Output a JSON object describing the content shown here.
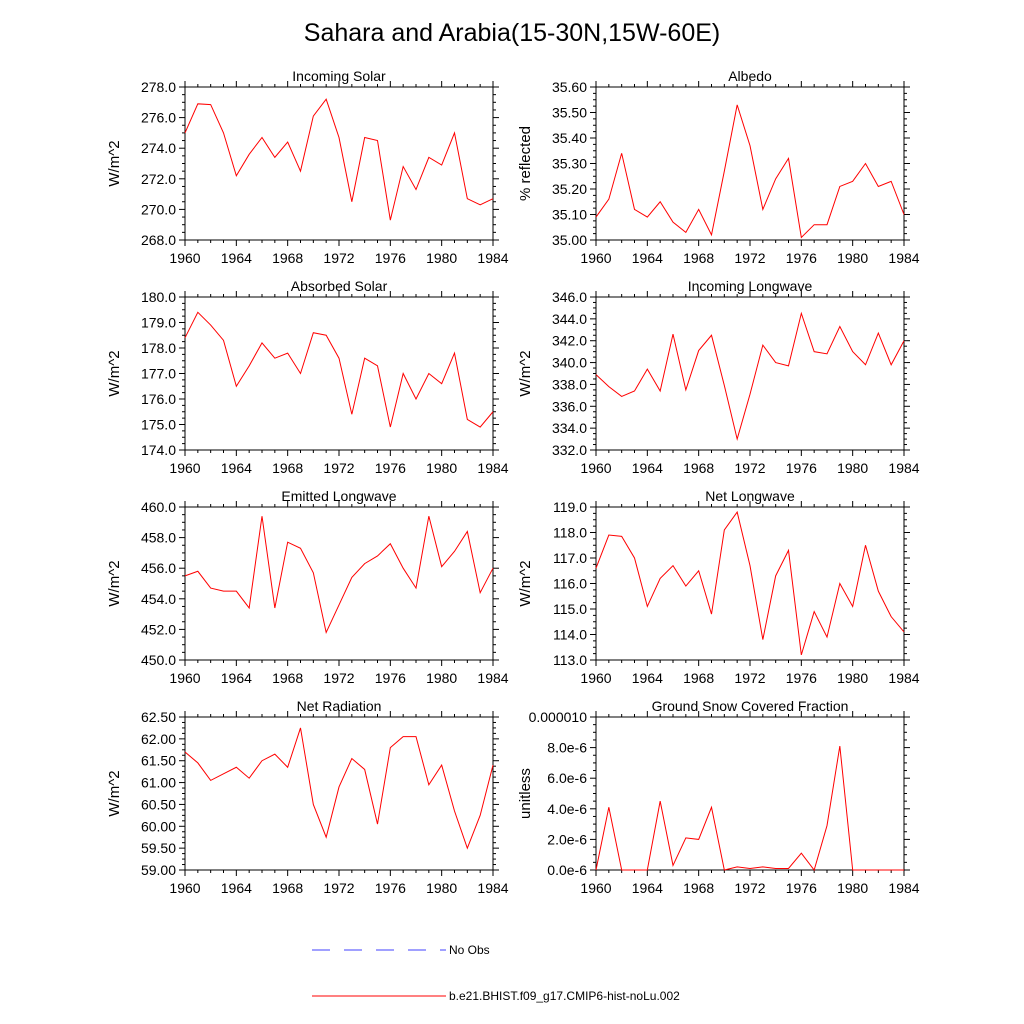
{
  "title": "Sahara and Arabia(15-30N,15W-60E)",
  "legend": [
    {
      "label": "No Obs",
      "color": "#4040ff",
      "dashed": true
    },
    {
      "label": "b.e21.BHIST.f09_g17.CMIP6-hist-noLu.002",
      "color": "#ff0000",
      "dashed": false
    }
  ],
  "chart_data": [
    {
      "type": "line",
      "title": "Incoming Solar",
      "ylabel": "W/m^2",
      "xlim": [
        1960,
        1984
      ],
      "ylim": [
        268,
        278
      ],
      "xticks": [
        1960,
        1964,
        1968,
        1972,
        1976,
        1980,
        1984
      ],
      "xtick_labels": [
        "1960",
        "1964",
        "1968",
        "1972",
        "1976",
        "1980",
        "1984"
      ],
      "yticks": [
        268,
        270,
        272,
        274,
        276,
        278
      ],
      "ytick_labels": [
        "268.0",
        "270.0",
        "272.0",
        "274.0",
        "276.0",
        "278.0"
      ],
      "series": [
        {
          "color": "#ff0000",
          "x": [
            1960,
            1961,
            1962,
            1963,
            1964,
            1965,
            1966,
            1967,
            1968,
            1969,
            1970,
            1971,
            1972,
            1973,
            1974,
            1975,
            1976,
            1977,
            1978,
            1979,
            1980,
            1981,
            1982,
            1983,
            1984
          ],
          "values": [
            275.0,
            276.9,
            276.85,
            275.0,
            272.2,
            273.6,
            274.7,
            273.4,
            274.4,
            272.5,
            276.1,
            277.2,
            274.7,
            270.5,
            274.7,
            274.5,
            269.3,
            272.8,
            271.3,
            273.4,
            272.9,
            275.0,
            270.7,
            270.3,
            270.7
          ]
        }
      ]
    },
    {
      "type": "line",
      "title": "Albedo",
      "ylabel": "% reflected",
      "xlim": [
        1960,
        1984
      ],
      "ylim": [
        35.0,
        35.6
      ],
      "xticks": [
        1960,
        1964,
        1968,
        1972,
        1976,
        1980,
        1984
      ],
      "xtick_labels": [
        "1960",
        "1964",
        "1968",
        "1972",
        "1976",
        "1980",
        "1984"
      ],
      "yticks": [
        35.0,
        35.1,
        35.2,
        35.3,
        35.4,
        35.5,
        35.6
      ],
      "ytick_labels": [
        "35.00",
        "35.10",
        "35.20",
        "35.30",
        "35.40",
        "35.50",
        "35.60"
      ],
      "series": [
        {
          "color": "#ff0000",
          "x": [
            1960,
            1961,
            1962,
            1963,
            1964,
            1965,
            1966,
            1967,
            1968,
            1969,
            1970,
            1971,
            1972,
            1973,
            1974,
            1975,
            1976,
            1977,
            1978,
            1979,
            1980,
            1981,
            1982,
            1983,
            1984
          ],
          "values": [
            35.09,
            35.16,
            35.34,
            35.12,
            35.09,
            35.15,
            35.07,
            35.03,
            35.12,
            35.02,
            35.27,
            35.53,
            35.37,
            35.12,
            35.24,
            35.32,
            35.01,
            35.06,
            35.06,
            35.21,
            35.23,
            35.3,
            35.21,
            35.23,
            35.1
          ]
        }
      ]
    },
    {
      "type": "line",
      "title": "Absorbed Solar",
      "ylabel": "W/m^2",
      "xlim": [
        1960,
        1984
      ],
      "ylim": [
        174,
        180
      ],
      "xticks": [
        1960,
        1964,
        1968,
        1972,
        1976,
        1980,
        1984
      ],
      "xtick_labels": [
        "1960",
        "1964",
        "1968",
        "1972",
        "1976",
        "1980",
        "1984"
      ],
      "yticks": [
        174,
        175,
        176,
        177,
        178,
        179,
        180
      ],
      "ytick_labels": [
        "174.0",
        "175.0",
        "176.0",
        "177.0",
        "178.0",
        "179.0",
        "180.0"
      ],
      "series": [
        {
          "color": "#ff0000",
          "x": [
            1960,
            1961,
            1962,
            1963,
            1964,
            1965,
            1966,
            1967,
            1968,
            1969,
            1970,
            1971,
            1972,
            1973,
            1974,
            1975,
            1976,
            1977,
            1978,
            1979,
            1980,
            1981,
            1982,
            1983,
            1984
          ],
          "values": [
            178.4,
            179.4,
            178.9,
            178.3,
            176.5,
            177.3,
            178.2,
            177.6,
            177.8,
            177.0,
            178.6,
            178.5,
            177.6,
            175.4,
            177.6,
            177.3,
            174.9,
            177.0,
            176.0,
            177.0,
            176.6,
            177.8,
            175.2,
            174.9,
            175.5
          ]
        }
      ]
    },
    {
      "type": "line",
      "title": "Incoming Longwave",
      "ylabel": "W/m^2",
      "xlim": [
        1960,
        1984
      ],
      "ylim": [
        332,
        346
      ],
      "xticks": [
        1960,
        1964,
        1968,
        1972,
        1976,
        1980,
        1984
      ],
      "xtick_labels": [
        "1960",
        "1964",
        "1968",
        "1972",
        "1976",
        "1980",
        "1984"
      ],
      "yticks": [
        332,
        334,
        336,
        338,
        340,
        342,
        344,
        346
      ],
      "ytick_labels": [
        "332.0",
        "334.0",
        "336.0",
        "338.0",
        "340.0",
        "342.0",
        "344.0",
        "346.0"
      ],
      "series": [
        {
          "color": "#ff0000",
          "x": [
            1960,
            1961,
            1962,
            1963,
            1964,
            1965,
            1966,
            1967,
            1968,
            1969,
            1970,
            1971,
            1972,
            1973,
            1974,
            1975,
            1976,
            1977,
            1978,
            1979,
            1980,
            1981,
            1982,
            1983,
            1984
          ],
          "values": [
            338.9,
            337.8,
            336.9,
            337.4,
            339.4,
            337.4,
            342.6,
            337.5,
            341.1,
            342.5,
            337.9,
            333.0,
            337.1,
            341.6,
            340.0,
            339.7,
            344.5,
            341.0,
            340.8,
            343.3,
            341.0,
            339.8,
            342.7,
            339.8,
            342.0
          ]
        }
      ]
    },
    {
      "type": "line",
      "title": "Emitted Longwave",
      "ylabel": "W/m^2",
      "xlim": [
        1960,
        1984
      ],
      "ylim": [
        450,
        460
      ],
      "xticks": [
        1960,
        1964,
        1968,
        1972,
        1976,
        1980,
        1984
      ],
      "xtick_labels": [
        "1960",
        "1964",
        "1968",
        "1972",
        "1976",
        "1980",
        "1984"
      ],
      "yticks": [
        450,
        452,
        454,
        456,
        458,
        460
      ],
      "ytick_labels": [
        "450.0",
        "452.0",
        "454.0",
        "456.0",
        "458.0",
        "460.0"
      ],
      "series": [
        {
          "color": "#ff0000",
          "x": [
            1960,
            1961,
            1962,
            1963,
            1964,
            1965,
            1966,
            1967,
            1968,
            1969,
            1970,
            1971,
            1972,
            1973,
            1974,
            1975,
            1976,
            1977,
            1978,
            1979,
            1980,
            1981,
            1982,
            1983,
            1984
          ],
          "values": [
            455.5,
            455.8,
            454.7,
            454.5,
            454.5,
            453.4,
            459.4,
            453.4,
            457.7,
            457.3,
            455.7,
            451.8,
            453.6,
            455.4,
            456.3,
            456.8,
            457.6,
            456.0,
            454.7,
            459.4,
            456.1,
            457.1,
            458.4,
            454.4,
            456.0
          ]
        }
      ]
    },
    {
      "type": "line",
      "title": "Net Longwave",
      "ylabel": "W/m^2",
      "xlim": [
        1960,
        1984
      ],
      "ylim": [
        113,
        119
      ],
      "xticks": [
        1960,
        1964,
        1968,
        1972,
        1976,
        1980,
        1984
      ],
      "xtick_labels": [
        "1960",
        "1964",
        "1968",
        "1972",
        "1976",
        "1980",
        "1984"
      ],
      "yticks": [
        113,
        114,
        115,
        116,
        117,
        118,
        119
      ],
      "ytick_labels": [
        "113.0",
        "114.0",
        "115.0",
        "116.0",
        "117.0",
        "118.0",
        "119.0"
      ],
      "series": [
        {
          "color": "#ff0000",
          "x": [
            1960,
            1961,
            1962,
            1963,
            1964,
            1965,
            1966,
            1967,
            1968,
            1969,
            1970,
            1971,
            1972,
            1973,
            1974,
            1975,
            1976,
            1977,
            1978,
            1979,
            1980,
            1981,
            1982,
            1983,
            1984
          ],
          "values": [
            116.6,
            117.9,
            117.85,
            117.0,
            115.1,
            116.2,
            116.7,
            115.9,
            116.5,
            114.8,
            118.1,
            118.8,
            116.7,
            113.8,
            116.3,
            117.3,
            113.2,
            114.9,
            113.9,
            116.0,
            115.1,
            117.5,
            115.7,
            114.7,
            114.1
          ]
        }
      ]
    },
    {
      "type": "line",
      "title": "Net Radiation",
      "ylabel": "W/m^2",
      "xlim": [
        1960,
        1984
      ],
      "ylim": [
        59.0,
        62.5
      ],
      "xticks": [
        1960,
        1964,
        1968,
        1972,
        1976,
        1980,
        1984
      ],
      "xtick_labels": [
        "1960",
        "1964",
        "1968",
        "1972",
        "1976",
        "1980",
        "1984"
      ],
      "yticks": [
        59.0,
        59.5,
        60.0,
        60.5,
        61.0,
        61.5,
        62.0,
        62.5
      ],
      "ytick_labels": [
        "59.00",
        "59.50",
        "60.00",
        "60.50",
        "61.00",
        "61.50",
        "62.00",
        "62.50"
      ],
      "series": [
        {
          "color": "#ff0000",
          "x": [
            1960,
            1961,
            1962,
            1963,
            1964,
            1965,
            1966,
            1967,
            1968,
            1969,
            1970,
            1971,
            1972,
            1973,
            1974,
            1975,
            1976,
            1977,
            1978,
            1979,
            1980,
            1981,
            1982,
            1983,
            1984
          ],
          "values": [
            61.7,
            61.45,
            61.05,
            61.2,
            61.35,
            61.1,
            61.5,
            61.65,
            61.35,
            62.25,
            60.5,
            59.75,
            60.9,
            61.55,
            61.3,
            60.05,
            61.8,
            62.05,
            62.05,
            60.95,
            61.4,
            60.35,
            59.5,
            60.25,
            61.4
          ]
        }
      ]
    },
    {
      "type": "line",
      "title": "Ground Snow Covered Fraction",
      "ylabel": "unitless",
      "xlim": [
        1960,
        1984
      ],
      "ylim": [
        0,
        1e-05
      ],
      "xticks": [
        1960,
        1964,
        1968,
        1972,
        1976,
        1980,
        1984
      ],
      "xtick_labels": [
        "1960",
        "1964",
        "1968",
        "1972",
        "1976",
        "1980",
        "1984"
      ],
      "yticks": [
        0,
        2e-06,
        4e-06,
        6e-06,
        8e-06,
        1e-05
      ],
      "ytick_labels": [
        "0.0e-6",
        "2.0e-6",
        "4.0e-6",
        "6.0e-6",
        "8.0e-6",
        "0.000010"
      ],
      "series": [
        {
          "color": "#ff0000",
          "x": [
            1960,
            1961,
            1962,
            1963,
            1964,
            1965,
            1966,
            1967,
            1968,
            1969,
            1970,
            1971,
            1972,
            1973,
            1974,
            1975,
            1976,
            1977,
            1978,
            1979,
            1980,
            1981,
            1982,
            1983,
            1984
          ],
          "values": [
            0.0,
            4.1e-06,
            0.0,
            0.0,
            0.0,
            4.5e-06,
            3e-07,
            2.1e-06,
            2e-06,
            4.1e-06,
            0.0,
            2e-07,
            1e-07,
            2e-07,
            1e-07,
            1e-07,
            1.1e-06,
            0.0,
            2.9e-06,
            8.1e-06,
            0.0,
            0.0,
            0.0,
            0.0,
            0.0
          ]
        }
      ]
    }
  ]
}
